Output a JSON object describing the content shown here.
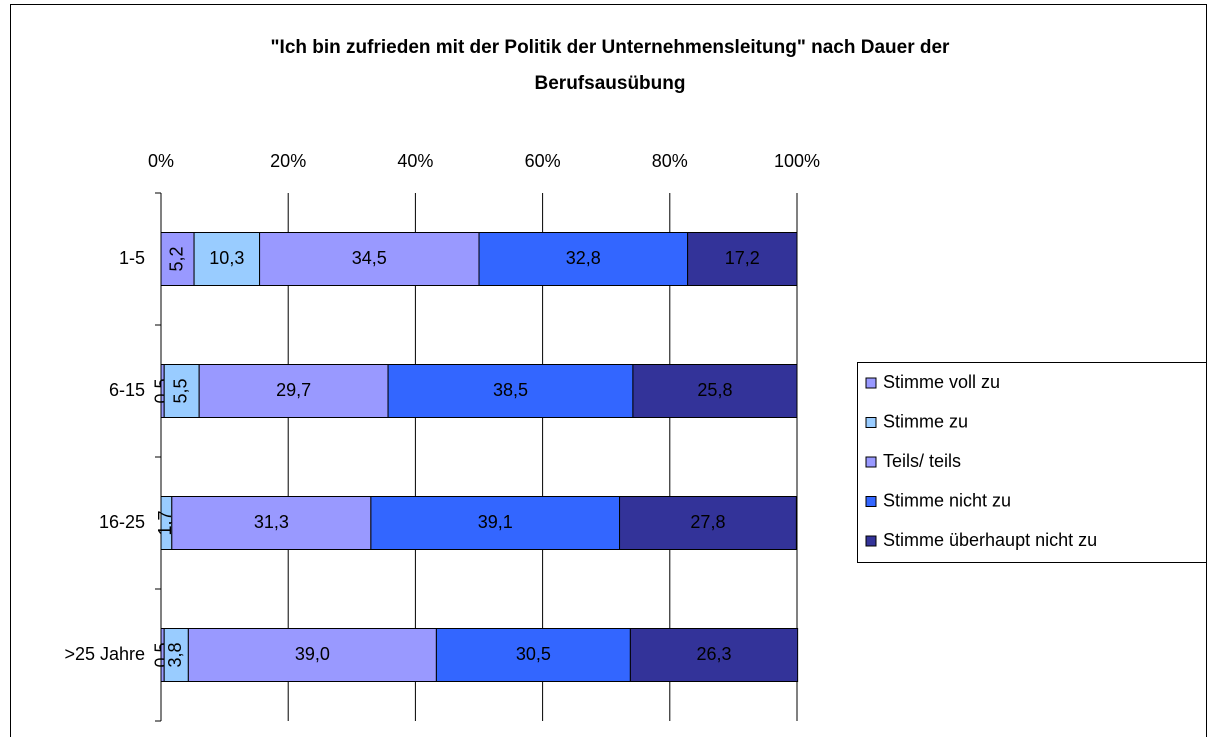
{
  "chart_data": {
    "type": "stacked_bar_horizontal",
    "title": "\"Ich bin zufrieden mit der Politik der Unternehmensleitung\" nach Dauer der Berufsausübung",
    "categories": [
      "1-5",
      "6-15",
      "16-25",
      ">25 Jahre"
    ],
    "series": [
      {
        "name": "Stimme voll zu",
        "color": "#9999ff",
        "values": [
          5.2,
          0.5,
          null,
          0.5
        ],
        "value_labels": [
          "5,2",
          "0,5",
          null,
          "0,5"
        ]
      },
      {
        "name": "Stimme zu",
        "color": "#99ccff",
        "values": [
          10.3,
          5.5,
          1.7,
          3.8
        ],
        "value_labels": [
          "10,3",
          "5,5",
          "1,7",
          "3,8"
        ]
      },
      {
        "name": "Teils/ teils",
        "color": "#9999ff",
        "values": [
          34.5,
          29.7,
          31.3,
          39.0
        ],
        "value_labels": [
          "34,5",
          "29,7",
          "31,3",
          "39,0"
        ]
      },
      {
        "name": "Stimme nicht zu",
        "color": "#3366ff",
        "values": [
          32.8,
          38.5,
          39.1,
          30.5
        ],
        "value_labels": [
          "32,8",
          "38,5",
          "39,1",
          "30,5"
        ]
      },
      {
        "name": "Stimme überhaupt nicht zu",
        "color": "#333399",
        "values": [
          17.2,
          25.8,
          27.8,
          26.3
        ],
        "value_labels": [
          "17,2",
          "25,8",
          "27,8",
          "26,3"
        ]
      }
    ],
    "xlim": [
      0,
      100
    ],
    "xticks": [
      {
        "value": 0,
        "label": "0%"
      },
      {
        "value": 20,
        "label": "20%"
      },
      {
        "value": 40,
        "label": "40%"
      },
      {
        "value": 60,
        "label": "60%"
      },
      {
        "value": 80,
        "label": "80%"
      },
      {
        "value": 100,
        "label": "100%"
      }
    ],
    "grid": true,
    "legend": "right"
  }
}
